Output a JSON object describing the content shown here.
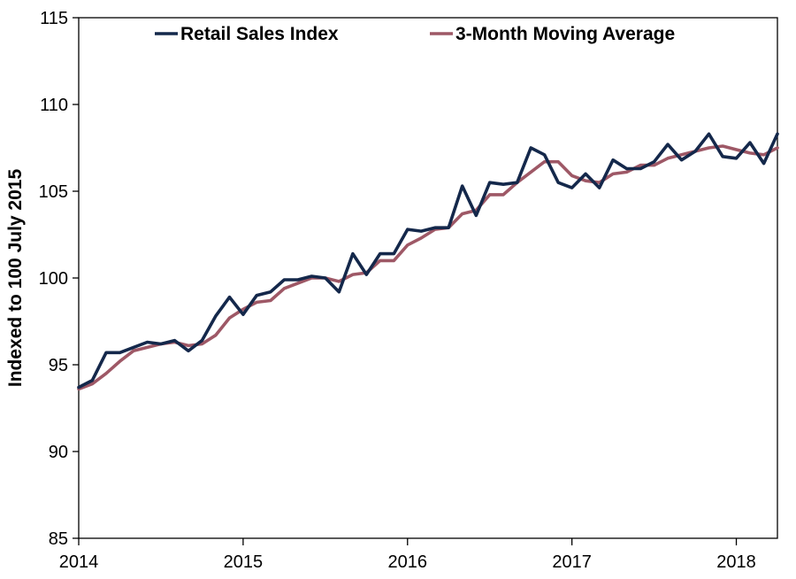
{
  "chart_data": {
    "type": "line",
    "title": "",
    "xlabel": "",
    "ylabel": "Indexed to 100 July 2015",
    "ylim": [
      85,
      115
    ],
    "yticks": [
      85,
      90,
      95,
      100,
      105,
      110,
      115
    ],
    "xlim": [
      2014,
      2018.25
    ],
    "xticks": [
      2014,
      2015,
      2016,
      2017,
      2018
    ],
    "grid": false,
    "legend_position": "top",
    "series": [
      {
        "name": "Retail Sales Index",
        "color": "#14284b",
        "x": [
          2014,
          2014.083,
          2014.167,
          2014.25,
          2014.333,
          2014.417,
          2014.5,
          2014.583,
          2014.667,
          2014.75,
          2014.833,
          2014.917,
          2015,
          2015.083,
          2015.167,
          2015.25,
          2015.333,
          2015.417,
          2015.5,
          2015.583,
          2015.667,
          2015.75,
          2015.833,
          2015.917,
          2016,
          2016.083,
          2016.167,
          2016.25,
          2016.333,
          2016.417,
          2016.5,
          2016.583,
          2016.667,
          2016.75,
          2016.833,
          2016.917,
          2017,
          2017.083,
          2017.167,
          2017.25,
          2017.333,
          2017.417,
          2017.5,
          2017.583,
          2017.667,
          2017.75,
          2017.833,
          2017.917,
          2018,
          2018.083,
          2018.167,
          2018.25
        ],
        "values": [
          93.7,
          94.1,
          95.7,
          95.7,
          96.0,
          96.3,
          96.2,
          96.4,
          95.8,
          96.4,
          97.8,
          98.9,
          97.9,
          99.0,
          99.2,
          99.9,
          99.9,
          100.1,
          100.0,
          99.2,
          101.4,
          100.2,
          101.4,
          101.4,
          102.8,
          102.7,
          102.9,
          102.9,
          105.3,
          103.6,
          105.5,
          105.4,
          105.5,
          107.5,
          107.1,
          105.5,
          105.2,
          106.0,
          105.2,
          106.8,
          106.3,
          106.3,
          106.7,
          107.7,
          106.8,
          107.3,
          108.3,
          107.0,
          106.9,
          107.8,
          106.6,
          108.3
        ]
      },
      {
        "name": "3-Month Moving Average",
        "color": "#9e5866",
        "x": [
          2014,
          2014.083,
          2014.167,
          2014.25,
          2014.333,
          2014.417,
          2014.5,
          2014.583,
          2014.667,
          2014.75,
          2014.833,
          2014.917,
          2015,
          2015.083,
          2015.167,
          2015.25,
          2015.333,
          2015.417,
          2015.5,
          2015.583,
          2015.667,
          2015.75,
          2015.833,
          2015.917,
          2016,
          2016.083,
          2016.167,
          2016.25,
          2016.333,
          2016.417,
          2016.5,
          2016.583,
          2016.667,
          2016.75,
          2016.833,
          2016.917,
          2017,
          2017.083,
          2017.167,
          2017.25,
          2017.333,
          2017.417,
          2017.5,
          2017.583,
          2017.667,
          2017.75,
          2017.833,
          2017.917,
          2018,
          2018.083,
          2018.167,
          2018.25
        ],
        "values": [
          93.6,
          93.9,
          94.5,
          95.2,
          95.8,
          96.0,
          96.2,
          96.3,
          96.1,
          96.2,
          96.7,
          97.7,
          98.2,
          98.6,
          98.7,
          99.4,
          99.7,
          100.0,
          100.0,
          99.8,
          100.2,
          100.3,
          101.0,
          101.0,
          101.9,
          102.3,
          102.8,
          102.9,
          103.7,
          103.9,
          104.8,
          104.8,
          105.5,
          106.1,
          106.7,
          106.7,
          105.9,
          105.6,
          105.5,
          106.0,
          106.1,
          106.5,
          106.5,
          106.9,
          107.1,
          107.3,
          107.5,
          107.6,
          107.4,
          107.2,
          107.1,
          107.5
        ]
      }
    ]
  }
}
